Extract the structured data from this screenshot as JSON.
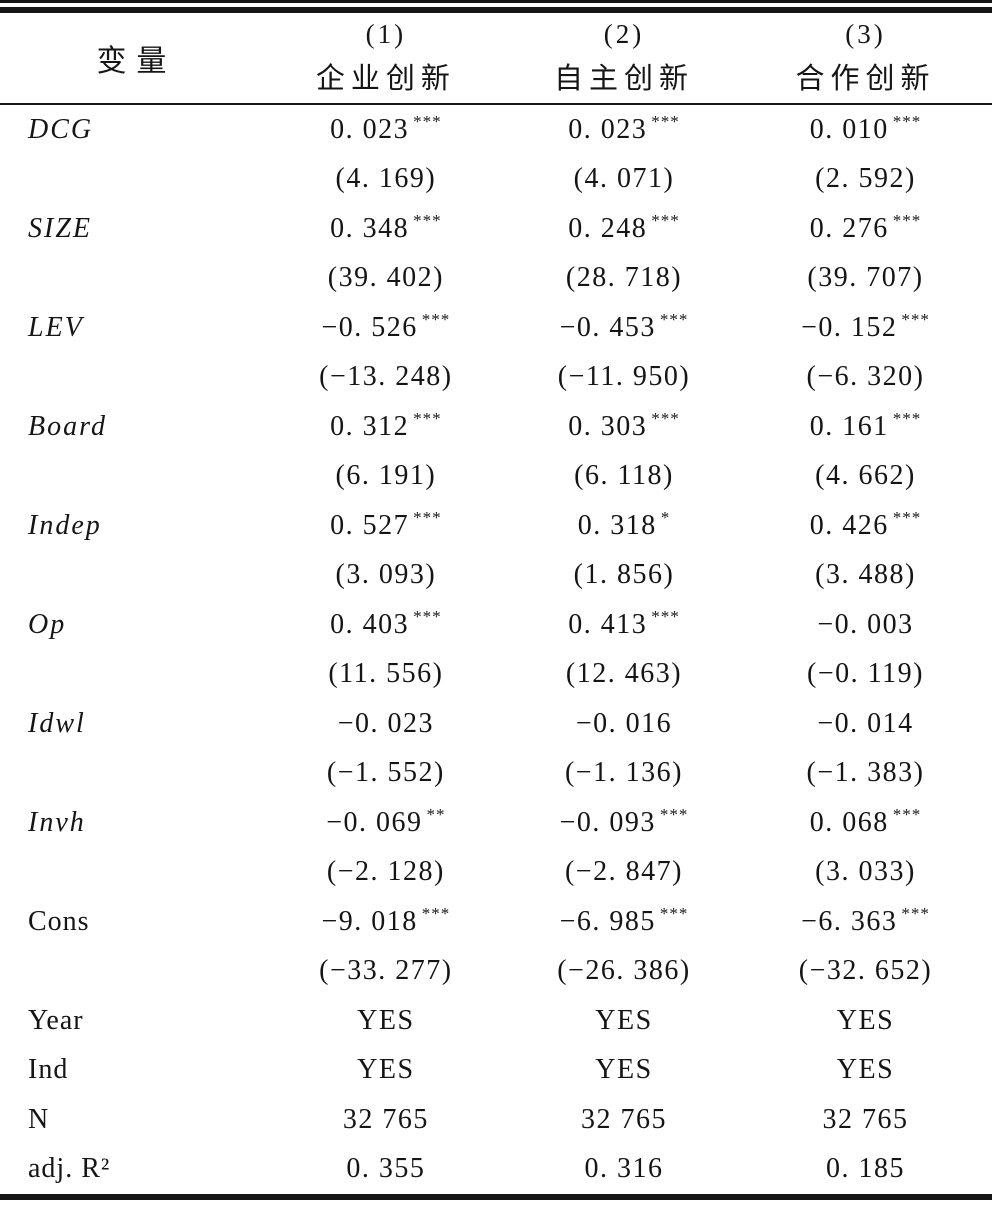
{
  "table": {
    "header": {
      "var_label": "变量",
      "columns": [
        {
          "num": "(1)",
          "name": "企业创新"
        },
        {
          "num": "(2)",
          "name": "自主创新"
        },
        {
          "num": "(3)",
          "name": "合作创新"
        }
      ]
    },
    "rows": [
      {
        "label": "DCG",
        "italic": true,
        "cells": [
          {
            "v": "0. 023",
            "stars": "***"
          },
          {
            "v": "0. 023",
            "stars": "***"
          },
          {
            "v": "0. 010",
            "stars": "***"
          }
        ],
        "tstats": [
          "(4. 169)",
          "(4. 071)",
          "(2. 592)"
        ]
      },
      {
        "label": "SIZE",
        "italic": true,
        "cells": [
          {
            "v": "0. 348",
            "stars": "***"
          },
          {
            "v": "0. 248",
            "stars": "***"
          },
          {
            "v": "0. 276",
            "stars": "***"
          }
        ],
        "tstats": [
          "(39. 402)",
          "(28. 718)",
          "(39. 707)"
        ]
      },
      {
        "label": "LEV",
        "italic": true,
        "cells": [
          {
            "v": "−0. 526",
            "stars": "***"
          },
          {
            "v": "−0. 453",
            "stars": "***"
          },
          {
            "v": "−0. 152",
            "stars": "***"
          }
        ],
        "tstats": [
          "(−13. 248)",
          "(−11. 950)",
          "(−6. 320)"
        ]
      },
      {
        "label": "Board",
        "italic": true,
        "cells": [
          {
            "v": "0. 312",
            "stars": "***"
          },
          {
            "v": "0. 303",
            "stars": "***"
          },
          {
            "v": "0. 161",
            "stars": "***"
          }
        ],
        "tstats": [
          "(6. 191)",
          "(6. 118)",
          "(4. 662)"
        ]
      },
      {
        "label": "Indep",
        "italic": true,
        "cells": [
          {
            "v": "0. 527",
            "stars": "***"
          },
          {
            "v": "0. 318",
            "stars": "*"
          },
          {
            "v": "0. 426",
            "stars": "***"
          }
        ],
        "tstats": [
          "(3. 093)",
          "(1. 856)",
          "(3. 488)"
        ]
      },
      {
        "label": "Op",
        "italic": true,
        "cells": [
          {
            "v": "0. 403",
            "stars": "***"
          },
          {
            "v": "0. 413",
            "stars": "***"
          },
          {
            "v": "−0. 003",
            "stars": ""
          }
        ],
        "tstats": [
          "(11. 556)",
          "(12. 463)",
          "(−0. 119)"
        ]
      },
      {
        "label": "Idwl",
        "italic": true,
        "cells": [
          {
            "v": "−0. 023",
            "stars": ""
          },
          {
            "v": "−0. 016",
            "stars": ""
          },
          {
            "v": "−0. 014",
            "stars": ""
          }
        ],
        "tstats": [
          "(−1. 552)",
          "(−1. 136)",
          "(−1. 383)"
        ]
      },
      {
        "label": "Invh",
        "italic": true,
        "cells": [
          {
            "v": "−0. 069",
            "stars": "**"
          },
          {
            "v": "−0. 093",
            "stars": "***"
          },
          {
            "v": "0. 068",
            "stars": "***"
          }
        ],
        "tstats": [
          "(−2. 128)",
          "(−2. 847)",
          "(3. 033)"
        ]
      },
      {
        "label": "Cons",
        "italic": false,
        "cells": [
          {
            "v": "−9. 018",
            "stars": "***"
          },
          {
            "v": "−6. 985",
            "stars": "***"
          },
          {
            "v": "−6. 363",
            "stars": "***"
          }
        ],
        "tstats": [
          "(−33. 277)",
          "(−26. 386)",
          "(−32. 652)"
        ]
      }
    ],
    "summary_rows": [
      {
        "label": "Year",
        "values": [
          "YES",
          "YES",
          "YES"
        ]
      },
      {
        "label": "Ind",
        "values": [
          "YES",
          "YES",
          "YES"
        ]
      },
      {
        "label": "N",
        "values": [
          "32 765",
          "32 765",
          "32 765"
        ]
      },
      {
        "label": "adj. R²",
        "values": [
          "0. 355",
          "0. 316",
          "0. 185"
        ]
      }
    ]
  }
}
